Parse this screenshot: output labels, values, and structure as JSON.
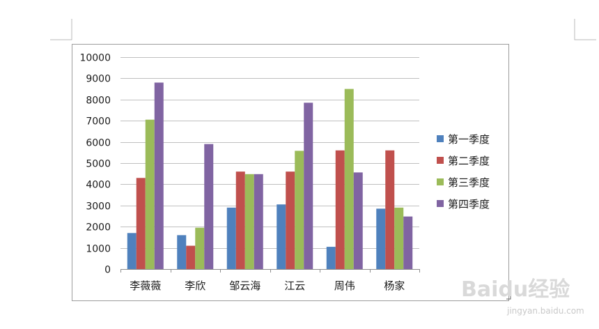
{
  "chart_data": {
    "type": "bar",
    "categories": [
      "李薇薇",
      "李欣",
      "邹云海",
      "江云",
      "周伟",
      "杨家"
    ],
    "series": [
      {
        "name": "第一季度",
        "color": "#4f81bd",
        "values": [
          1700,
          1600,
          2900,
          3050,
          1050,
          2850
        ]
      },
      {
        "name": "第二季度",
        "color": "#c0504d",
        "values": [
          4300,
          1100,
          4600,
          4600,
          5600,
          5600
        ]
      },
      {
        "name": "第三季度",
        "color": "#9bbb59",
        "values": [
          7050,
          1950,
          4480,
          5580,
          8500,
          2900
        ]
      },
      {
        "name": "第四季度",
        "color": "#8064a2",
        "values": [
          8800,
          5900,
          4480,
          7850,
          4560,
          2480
        ]
      }
    ],
    "yticks": [
      "0",
      "1000",
      "2000",
      "3000",
      "4000",
      "5000",
      "6000",
      "7000",
      "8000",
      "9000",
      "10000"
    ],
    "ylim": [
      0,
      10000
    ],
    "grid": true,
    "legend_position": "right"
  },
  "watermark": {
    "text": "Baidu经验",
    "url": "jingyan.baidu.com"
  }
}
